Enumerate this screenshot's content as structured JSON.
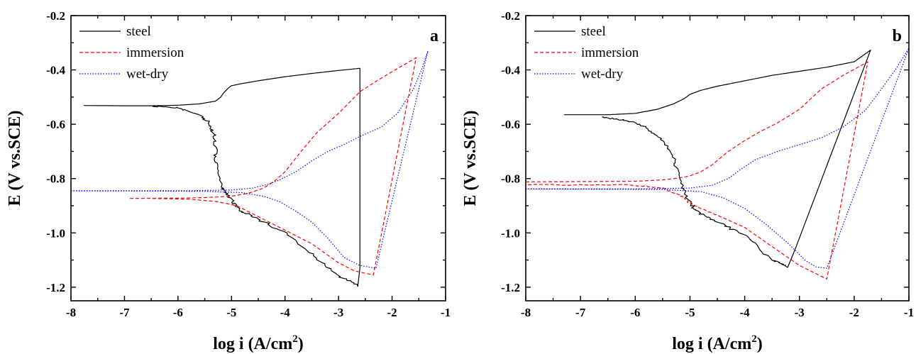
{
  "colors": {
    "steel": "#000000",
    "immersion": "#ff0000",
    "wet-dry": "#0000ff"
  },
  "chart_data": [
    {
      "type": "line",
      "panel_label": "a",
      "xlabel_text": "log i (A/cm",
      "xlabel_sup": "2",
      "xlabel_close": ")",
      "ylabel": "E (V vs.SCE)",
      "xlim": [
        -8,
        -1
      ],
      "ylim": [
        -1.25,
        -0.2
      ],
      "xticks": [
        -8,
        -7,
        -6,
        -5,
        -4,
        -3,
        -2,
        -1
      ],
      "xtick_labels": [
        "-8",
        "-7",
        "-6",
        "-5",
        "-4",
        "-3",
        "-2",
        "-1"
      ],
      "yticks": [
        -1.2,
        -1.0,
        -0.8,
        -0.6,
        -0.4,
        -0.2
      ],
      "ytick_labels": [
        "-1.2",
        "-1.0",
        "-0.8",
        "-0.6",
        "-0.4",
        "-0.2"
      ],
      "grid": false,
      "legend_position": "top-left",
      "series": [
        {
          "name": "steel",
          "style": "solid",
          "x": [
            -7.76,
            -7.0,
            -6.5,
            -6.0,
            -5.6,
            -5.3,
            -5.2,
            -5.15,
            -5.1,
            -5.05,
            -5.0,
            -4.8,
            -4.5,
            -4.0,
            -3.5,
            -3.0,
            -2.6,
            -2.6,
            -3.0,
            -3.5,
            -4.0,
            -4.5,
            -4.8,
            -5.0,
            -5.2,
            -5.3,
            -5.3,
            -5.4,
            -5.6,
            -6.0,
            -6.5
          ],
          "y": [
            -0.531,
            -0.532,
            -0.532,
            -0.53,
            -0.525,
            -0.515,
            -0.5,
            -0.485,
            -0.475,
            -0.465,
            -0.458,
            -0.45,
            -0.44,
            -0.425,
            -0.413,
            -0.402,
            -0.394,
            -1.195,
            -1.16,
            -1.08,
            -1.0,
            -0.95,
            -0.92,
            -0.88,
            -0.83,
            -0.73,
            -0.66,
            -0.6,
            -0.565,
            -0.54,
            -0.533
          ],
          "noise_from": 17
        },
        {
          "name": "immersion",
          "style": "dashed",
          "x": [
            -6.9,
            -6.0,
            -5.5,
            -5.0,
            -4.7,
            -4.4,
            -4.2,
            -4.0,
            -3.7,
            -3.4,
            -3.0,
            -2.6,
            -2.2,
            -1.9,
            -1.55,
            -2.35,
            -2.7,
            -3.0,
            -3.5,
            -4.0,
            -4.5,
            -4.9,
            -5.3,
            -5.8,
            -6.5
          ],
          "y": [
            -0.873,
            -0.872,
            -0.87,
            -0.865,
            -0.855,
            -0.835,
            -0.81,
            -0.775,
            -0.7,
            -0.63,
            -0.56,
            -0.48,
            -0.43,
            -0.395,
            -0.355,
            -1.155,
            -1.14,
            -1.11,
            -1.04,
            -0.99,
            -0.94,
            -0.9,
            -0.884,
            -0.876,
            -0.873
          ]
        },
        {
          "name": "wet-dry",
          "style": "dotted",
          "x": [
            -8.0,
            -6.0,
            -5.0,
            -4.6,
            -4.3,
            -4.1,
            -3.8,
            -3.5,
            -3.2,
            -2.9,
            -2.6,
            -2.2,
            -1.9,
            -1.6,
            -1.45,
            -1.33,
            -2.3,
            -2.6,
            -2.9,
            -3.2,
            -3.5,
            -3.8,
            -4.1,
            -4.4,
            -4.8,
            -5.5,
            -6.5,
            -8.0
          ],
          "y": [
            -0.845,
            -0.845,
            -0.842,
            -0.835,
            -0.82,
            -0.805,
            -0.775,
            -0.735,
            -0.7,
            -0.675,
            -0.645,
            -0.61,
            -0.56,
            -0.47,
            -0.4,
            -0.33,
            -1.13,
            -1.12,
            -1.09,
            -1.02,
            -0.96,
            -0.92,
            -0.885,
            -0.865,
            -0.852,
            -0.847,
            -0.846,
            -0.845
          ]
        }
      ]
    },
    {
      "type": "line",
      "panel_label": "b",
      "xlabel_text": "log i (A/cm",
      "xlabel_sup": "2",
      "xlabel_close": ")",
      "ylabel": "E (V vs.SCE)",
      "xlim": [
        -8,
        -1
      ],
      "ylim": [
        -1.25,
        -0.2
      ],
      "xticks": [
        -8,
        -7,
        -6,
        -5,
        -4,
        -3,
        -2,
        -1
      ],
      "xtick_labels": [
        "-8",
        "-7",
        "-6",
        "-5",
        "-4",
        "-3",
        "-2",
        "-1"
      ],
      "yticks": [
        -1.2,
        -1.0,
        -0.8,
        -0.6,
        -0.4,
        -0.2
      ],
      "ytick_labels": [
        "-1.2",
        "-1.0",
        "-0.8",
        "-0.6",
        "-0.4",
        "-0.2"
      ],
      "grid": false,
      "legend_position": "top-left",
      "series": [
        {
          "name": "steel",
          "style": "solid",
          "x": [
            -7.3,
            -6.5,
            -6.0,
            -5.6,
            -5.3,
            -5.1,
            -5.0,
            -4.8,
            -4.5,
            -4.0,
            -3.5,
            -3.0,
            -2.5,
            -2.0,
            -1.7,
            -3.2,
            -3.5,
            -4.0,
            -4.5,
            -4.8,
            -5.0,
            -5.2,
            -5.3,
            -5.5,
            -5.8,
            -6.2,
            -6.6
          ],
          "y": [
            -0.565,
            -0.565,
            -0.56,
            -0.545,
            -0.525,
            -0.505,
            -0.49,
            -0.475,
            -0.46,
            -0.44,
            -0.42,
            -0.405,
            -0.39,
            -0.37,
            -0.327,
            -1.125,
            -1.1,
            -1.01,
            -0.96,
            -0.93,
            -0.895,
            -0.8,
            -0.72,
            -0.66,
            -0.61,
            -0.585,
            -0.575
          ],
          "noise_from": 15
        },
        {
          "name": "immersion",
          "style": "dashed",
          "x": [
            -8.0,
            -6.0,
            -5.5,
            -5.2,
            -5.0,
            -4.8,
            -4.6,
            -4.3,
            -4.0,
            -3.7,
            -3.4,
            -3.0,
            -2.6,
            -2.2,
            -1.75,
            -2.5,
            -3.0,
            -3.5,
            -4.0,
            -4.5,
            -4.8,
            -5.0,
            -5.2,
            -5.5,
            -6.0,
            -8.0
          ],
          "y": [
            -0.812,
            -0.81,
            -0.805,
            -0.798,
            -0.79,
            -0.775,
            -0.75,
            -0.7,
            -0.66,
            -0.625,
            -0.595,
            -0.545,
            -0.47,
            -0.42,
            -0.37,
            -1.17,
            -1.12,
            -1.05,
            -0.98,
            -0.935,
            -0.91,
            -0.89,
            -0.86,
            -0.835,
            -0.825,
            -0.822
          ],
          "noise_from": 19
        },
        {
          "name": "wet-dry",
          "style": "dotted",
          "x": [
            -8.0,
            -6.0,
            -5.0,
            -4.6,
            -4.3,
            -4.1,
            -3.8,
            -3.4,
            -3.0,
            -2.6,
            -2.2,
            -1.8,
            -1.5,
            -1.25,
            -1.0,
            -2.5,
            -2.7,
            -2.9,
            -3.2,
            -3.6,
            -4.0,
            -4.4,
            -4.8,
            -5.5,
            -6.5,
            -8.0
          ],
          "y": [
            -0.838,
            -0.838,
            -0.835,
            -0.825,
            -0.8,
            -0.77,
            -0.73,
            -0.7,
            -0.675,
            -0.65,
            -0.61,
            -0.55,
            -0.47,
            -0.4,
            -0.32,
            -1.13,
            -1.125,
            -1.1,
            -1.04,
            -0.97,
            -0.91,
            -0.87,
            -0.848,
            -0.84,
            -0.839,
            -0.838
          ]
        }
      ]
    }
  ]
}
